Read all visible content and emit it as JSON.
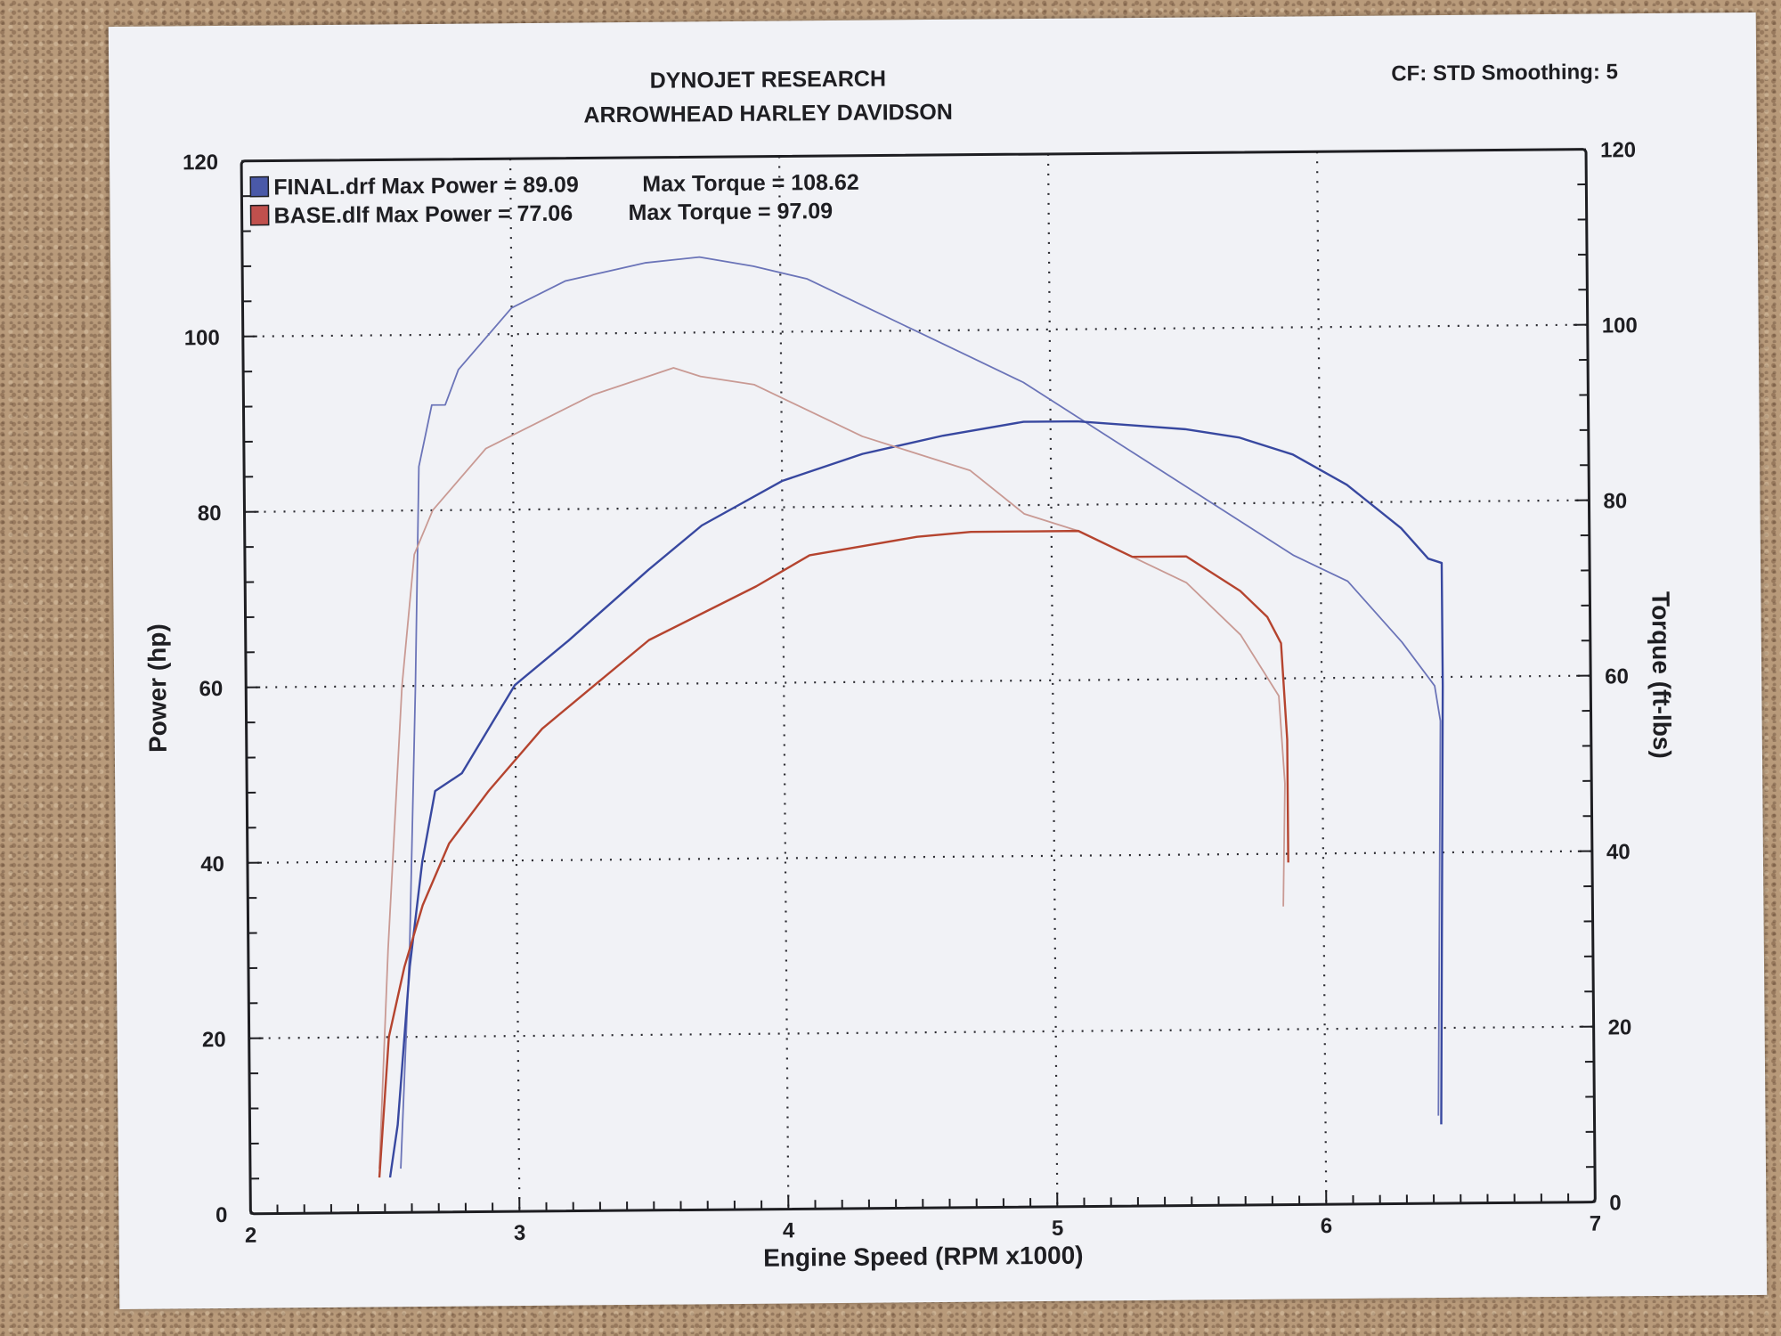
{
  "header": {
    "title": "DYNOJET RESEARCH",
    "subtitle": "ARROWHEAD HARLEY DAVIDSON",
    "settings": "CF: STD  Smoothing: 5"
  },
  "chart_data": {
    "type": "line",
    "xlabel": "Engine Speed (RPM x1000)",
    "ylabel": "Power (hp)",
    "y2label": "Torque (ft-lbs)",
    "xlim": [
      2,
      7
    ],
    "ylim": [
      0,
      120
    ],
    "y2lim": [
      0,
      120
    ],
    "x_ticks": [
      "2",
      "3",
      "4",
      "5",
      "6",
      "7"
    ],
    "y_ticks": [
      "0",
      "20",
      "40",
      "60",
      "80",
      "100",
      "120"
    ],
    "y2_ticks": [
      "0",
      "20",
      "40",
      "60",
      "80",
      "100",
      "120"
    ],
    "grid": true,
    "legend_position": "top-left",
    "legend": [
      {
        "file": "FINAL.drf",
        "power_label": "Max Power = 89.09",
        "torque_label": "Max Torque = 108.62",
        "color": "#4a59a8"
      },
      {
        "file": "BASE.dlf",
        "power_label": "Max Power = 77.06",
        "torque_label": "Max Torque = 97.09",
        "color": "#c0504d"
      }
    ],
    "series": [
      {
        "name": "FINAL.drf",
        "measure": "Torque",
        "axis": "right",
        "color": "#6b74b8",
        "x": [
          2.56,
          2.6,
          2.63,
          2.65,
          2.7,
          2.75,
          2.8,
          3.0,
          3.2,
          3.5,
          3.7,
          3.9,
          4.1,
          4.3,
          4.5,
          4.7,
          4.9,
          5.1,
          5.3,
          5.5,
          5.7,
          5.9,
          6.1,
          6.3,
          6.42,
          6.44,
          6.42
        ],
        "y": [
          5,
          30,
          60,
          85,
          92,
          92,
          96,
          103,
          106,
          108,
          108.6,
          107.5,
          106,
          103,
          100,
          97,
          94,
          90,
          86,
          82,
          78,
          74,
          71,
          64,
          59,
          55,
          10
        ]
      },
      {
        "name": "FINAL.drf",
        "measure": "Power",
        "axis": "left",
        "color": "#3848a0",
        "x": [
          2.52,
          2.55,
          2.6,
          2.65,
          2.7,
          2.8,
          3.0,
          3.2,
          3.5,
          3.7,
          4.0,
          4.3,
          4.6,
          4.9,
          5.1,
          5.3,
          5.5,
          5.7,
          5.9,
          6.1,
          6.3,
          6.4,
          6.45,
          6.45,
          6.43
        ],
        "y": [
          4,
          10,
          28,
          40,
          48,
          50,
          60,
          65,
          73,
          78,
          83,
          86,
          88,
          89.5,
          89.5,
          89,
          88.5,
          87.5,
          85.5,
          82,
          77,
          73.5,
          73,
          59,
          9
        ]
      },
      {
        "name": "BASE.dlf",
        "measure": "Torque",
        "axis": "right",
        "color": "#c99a94",
        "x": [
          2.48,
          2.52,
          2.58,
          2.63,
          2.7,
          2.9,
          3.1,
          3.3,
          3.5,
          3.6,
          3.7,
          3.9,
          4.1,
          4.3,
          4.5,
          4.7,
          4.9,
          5.1,
          5.3,
          5.5,
          5.7,
          5.8,
          5.84,
          5.86,
          5.85
        ],
        "y": [
          5,
          30,
          60,
          75,
          80,
          87,
          90,
          93,
          95,
          96,
          95,
          94,
          91,
          88,
          86,
          84,
          79,
          77,
          74,
          71,
          65,
          60,
          58,
          48,
          34
        ]
      },
      {
        "name": "BASE.dlf",
        "measure": "Power",
        "axis": "left",
        "color": "#b5442f",
        "x": [
          2.48,
          2.52,
          2.58,
          2.65,
          2.75,
          2.9,
          3.1,
          3.3,
          3.5,
          3.7,
          3.9,
          4.1,
          4.3,
          4.5,
          4.7,
          4.9,
          5.1,
          5.3,
          5.5,
          5.7,
          5.8,
          5.85,
          5.87,
          5.87
        ],
        "y": [
          4,
          20,
          28,
          35,
          42,
          48,
          55,
          60,
          65,
          68,
          71,
          74.5,
          75.5,
          76.5,
          77,
          77,
          77,
          74,
          74,
          70,
          67,
          64,
          53,
          39
        ]
      }
    ]
  }
}
